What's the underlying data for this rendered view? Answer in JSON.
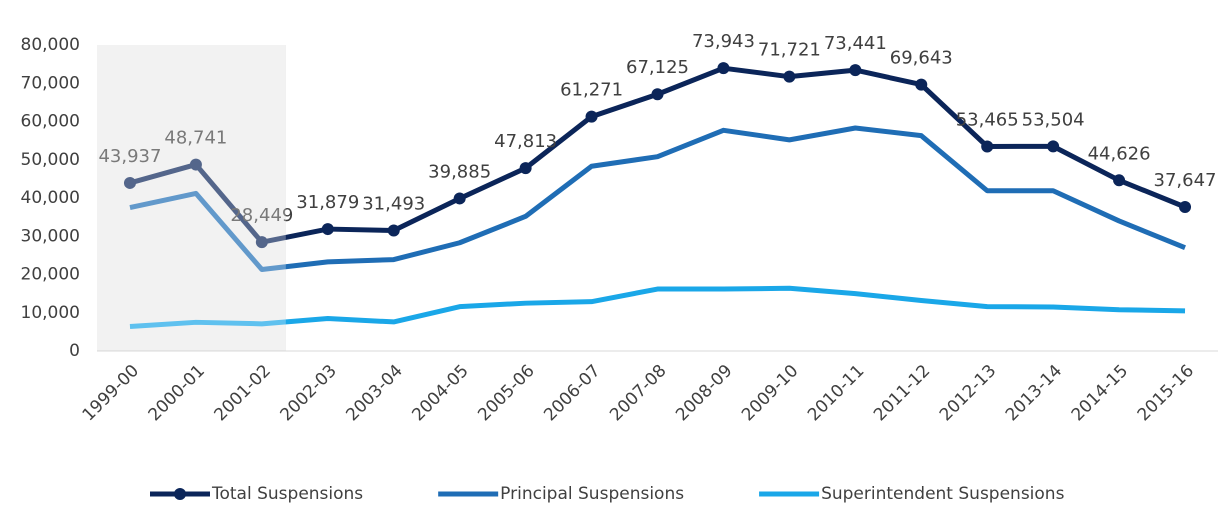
{
  "chart_data": {
    "type": "line",
    "categories": [
      "1999-00",
      "2000-01",
      "2001-02",
      "2002-03",
      "2003-04",
      "2004-05",
      "2005-06",
      "2006-07",
      "2007-08",
      "2008-09",
      "2009-10",
      "2010-11",
      "2011-12",
      "2012-13",
      "2013-14",
      "2014-15",
      "2015-16"
    ],
    "series": [
      {
        "name": "Total Suspensions",
        "color": "#0b2559",
        "markers": true,
        "values": [
          43937,
          48741,
          28449,
          31879,
          31493,
          39885,
          47813,
          61271,
          67125,
          73943,
          71721,
          73441,
          69643,
          53465,
          53504,
          44626,
          37647
        ],
        "value_labels": [
          "43,937",
          "48,741",
          "28,449",
          "31,879",
          "31,493",
          "39,885",
          "47,813",
          "61,271",
          "67,125",
          "73,943",
          "71,721",
          "73,441",
          "69,643",
          "53,465",
          "53,504",
          "44,626",
          "37,647"
        ]
      },
      {
        "name": "Principal Suspensions",
        "color": "#1f6db5",
        "markers": false,
        "values": [
          37500,
          41200,
          21300,
          23300,
          23900,
          28300,
          35200,
          48300,
          50800,
          57700,
          55200,
          58300,
          56300,
          41900,
          41900,
          34000,
          27000
        ]
      },
      {
        "name": "Superintendent Suspensions",
        "color": "#1aa7e8",
        "markers": false,
        "values": [
          6400,
          7500,
          7100,
          8500,
          7600,
          11600,
          12500,
          12900,
          16200,
          16200,
          16400,
          15000,
          13200,
          11600,
          11500,
          10800,
          10500
        ]
      }
    ],
    "ylim": [
      0,
      80000
    ],
    "yticks": [
      0,
      {
        "value": 10000,
        "label": "10,000"
      },
      {
        "value": 20000,
        "label": "20,000"
      },
      {
        "value": 30000,
        "label": "30,000"
      },
      {
        "value": 40000,
        "label": "40,000"
      },
      {
        "value": 50000,
        "label": "50,000"
      },
      {
        "value": 60000,
        "label": "60,000"
      },
      {
        "value": 70000,
        "label": "70,000"
      },
      {
        "value": 80000,
        "label": "80,000"
      }
    ],
    "grid": false,
    "legend": "bottom"
  }
}
